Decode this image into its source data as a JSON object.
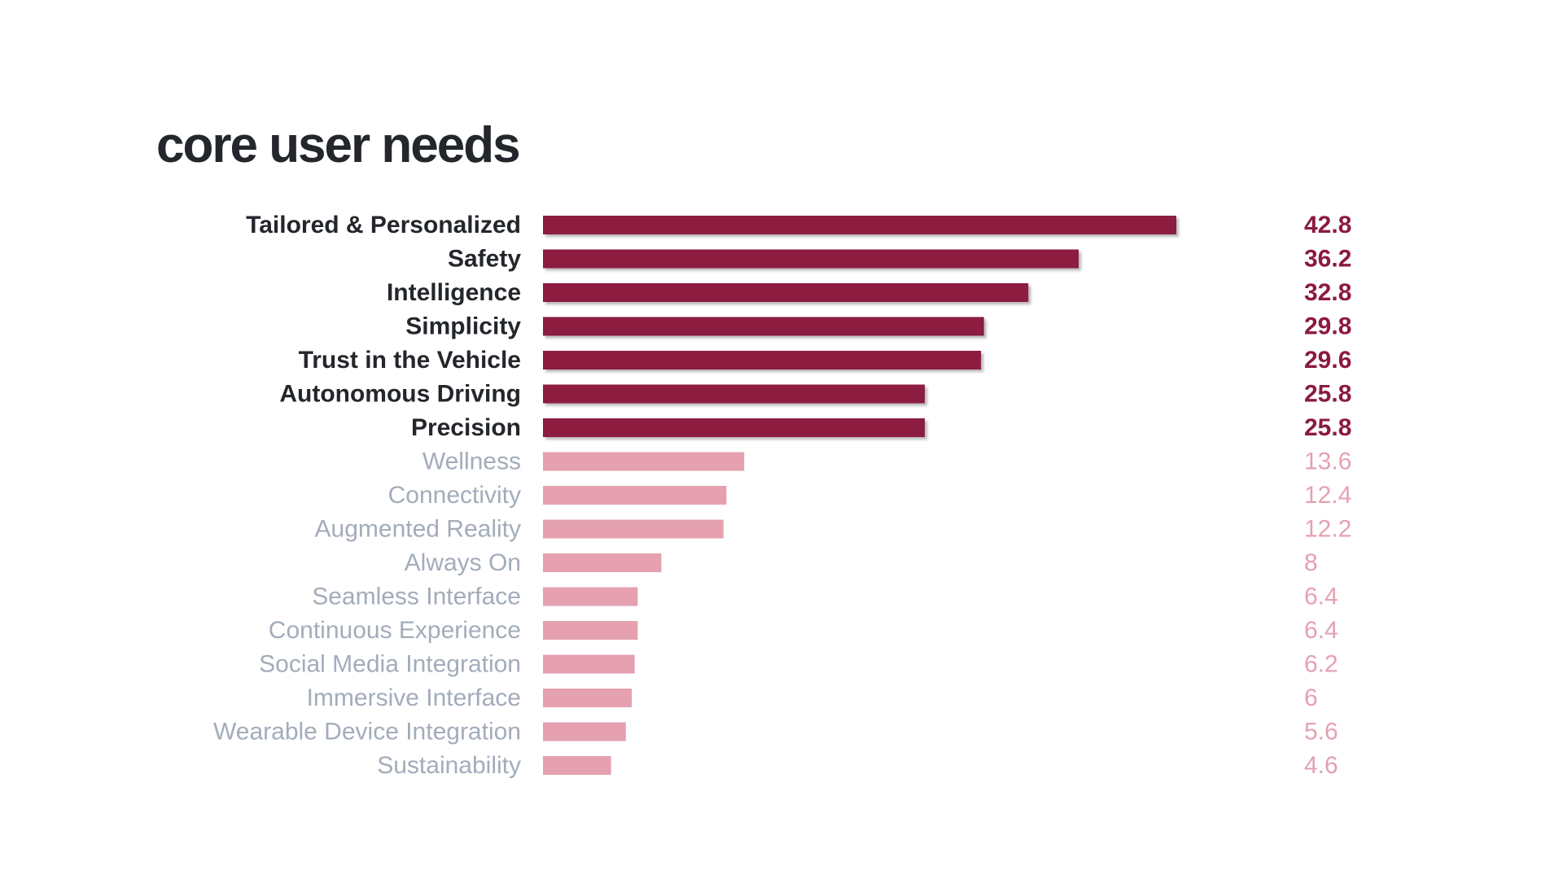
{
  "chart_data": {
    "type": "bar",
    "orientation": "horizontal",
    "title": "core user needs",
    "xlabel": "",
    "ylabel": "",
    "xlim": [
      0,
      42.8
    ],
    "grid": false,
    "legend": "none",
    "highlight_count": 7,
    "colors": {
      "highlight_bar": "#8c1a3f",
      "highlight_label": "#23262b",
      "highlight_value": "#8c1a3f",
      "muted_bar": "#e5a1b0",
      "muted_label": "#a3acba",
      "muted_value": "#e5a1b0"
    },
    "categories": [
      "Tailored & Personalized",
      "Safety",
      "Intelligence",
      "Simplicity",
      "Trust in the Vehicle",
      "Autonomous Driving",
      "Precision",
      "Wellness",
      "Connectivity",
      "Augmented Reality",
      "Always On",
      "Seamless Interface",
      "Continuous Experience",
      "Social Media Integration",
      "Immersive Interface",
      "Wearable Device Integration",
      "Sustainability"
    ],
    "values": [
      42.8,
      36.2,
      32.8,
      29.8,
      29.6,
      25.8,
      25.8,
      13.6,
      12.4,
      12.2,
      8,
      6.4,
      6.4,
      6.2,
      6,
      5.6,
      4.6
    ],
    "value_labels": [
      "42.8",
      "36.2",
      "32.8",
      "29.8",
      "29.6",
      "25.8",
      "25.8",
      "13.6",
      "12.4",
      "12.2",
      "8",
      "6.4",
      "6.4",
      "6.2",
      "6",
      "5.6",
      "4.6"
    ]
  }
}
